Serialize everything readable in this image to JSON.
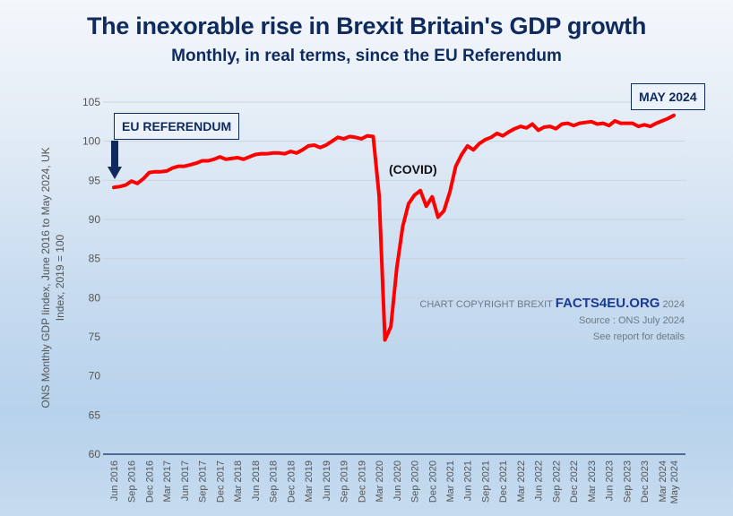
{
  "chart_data": {
    "type": "line",
    "title": "The inexorable rise in Brexit Britain's GDP growth",
    "subtitle": "Monthly, in real terms, since the EU Referendum",
    "ylabel_line1": "ONS Monthly GDP Iindex, June 2016 to May 2024, UK",
    "ylabel_line2": "Index, 2019 = 100",
    "xlabel": "",
    "ylim": [
      60,
      105
    ],
    "yticks": [
      60,
      65,
      70,
      75,
      80,
      85,
      90,
      95,
      100,
      105
    ],
    "grid": true,
    "x_tick_labels": [
      "Jun 2016",
      "Sep 2016",
      "Dec 2016",
      "Mar 2017",
      "Jun 2017",
      "Sep 2017",
      "Dec 2017",
      "Mar 2018",
      "Jun 2018",
      "Sep 2018",
      "Dec 2018",
      "Mar 2019",
      "Jun 2019",
      "Sep 2019",
      "Dec 2019",
      "Mar 2020",
      "Jun 2020",
      "Sep 2020",
      "Dec 2020",
      "Mar 2021",
      "Jun 2021",
      "Sep 2021",
      "Dec 2021",
      "Mar 2022",
      "Jun 2022",
      "Sep 2022",
      "Dec 2022",
      "Mar 2023",
      "Jun 2023",
      "Sep 2023",
      "Dec 2023",
      "Mar 2024",
      "May 2024"
    ],
    "x_tick_month_index": [
      0,
      3,
      6,
      9,
      12,
      15,
      18,
      21,
      24,
      27,
      30,
      33,
      36,
      39,
      42,
      45,
      48,
      51,
      54,
      57,
      60,
      63,
      66,
      69,
      72,
      75,
      78,
      81,
      84,
      87,
      90,
      93,
      95
    ],
    "x_start": "Jun 2016",
    "x_end": "May 2024",
    "series": [
      {
        "name": "GDP Index",
        "color": "#ff0000",
        "values": [
          94.1,
          94.2,
          94.4,
          94.9,
          94.6,
          95.2,
          96.0,
          96.1,
          96.1,
          96.2,
          96.6,
          96.8,
          96.8,
          97.0,
          97.2,
          97.5,
          97.5,
          97.7,
          98.0,
          97.7,
          97.8,
          97.9,
          97.7,
          98.0,
          98.3,
          98.4,
          98.4,
          98.5,
          98.5,
          98.4,
          98.7,
          98.5,
          98.9,
          99.4,
          99.5,
          99.2,
          99.5,
          100.0,
          100.5,
          100.3,
          100.6,
          100.5,
          100.3,
          100.7,
          100.6,
          93.0,
          74.6,
          76.3,
          83.8,
          89.1,
          92.0,
          93.1,
          93.7,
          91.7,
          92.9,
          90.3,
          91.1,
          93.5,
          96.8,
          98.3,
          99.4,
          98.9,
          99.7,
          100.2,
          100.5,
          101.0,
          100.7,
          101.2,
          101.6,
          101.9,
          101.7,
          102.2,
          101.4,
          101.8,
          101.9,
          101.6,
          102.2,
          102.3,
          102.0,
          102.3,
          102.4,
          102.5,
          102.2,
          102.3,
          102.0,
          102.6,
          102.3,
          102.3,
          102.3,
          101.9,
          102.1,
          101.9,
          102.3,
          102.6,
          102.9,
          103.3
        ]
      }
    ],
    "annotations": {
      "referendum": "EU REFERENDUM",
      "latest": "MAY 2024",
      "covid": "(COVID)"
    }
  },
  "credits": {
    "prefix": "CHART COPYRIGHT BREXIT",
    "brand": "FACTS4EU.ORG",
    "year": "2024",
    "source": "Source : ONS July 2024",
    "note": "See report for details"
  },
  "colors": {
    "title": "#0f2a5c",
    "line": "#ff0000",
    "arrow": "#0f2a5c",
    "brand": "#1a3a94"
  }
}
